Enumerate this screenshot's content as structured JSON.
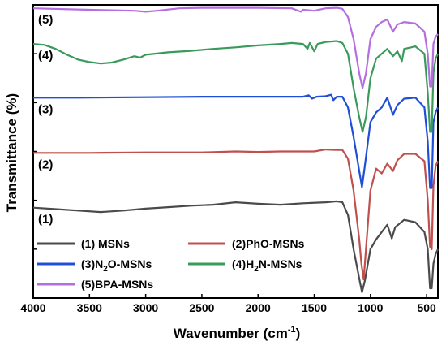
{
  "chart_data": {
    "type": "line",
    "xlabel_main": "Wavenumber (cm",
    "xlabel_sup": "-1",
    "xlabel_tail": ")",
    "ylabel": "Transmittance (%)",
    "xlim": [
      4000,
      400
    ],
    "x_reversed": true,
    "ylim": [
      0,
      6
    ],
    "y_tick_labels": false,
    "grid": false,
    "legend_placement": "bottom-left",
    "x_ticks": [
      4000,
      3500,
      3000,
      2500,
      2000,
      1500,
      1000,
      500
    ],
    "series": [
      {
        "name": "(1) MSNs",
        "tag": "(1)",
        "color": "#4a4a4a",
        "points": [
          [
            4000,
            1.85
          ],
          [
            3800,
            1.82
          ],
          [
            3600,
            1.79
          ],
          [
            3400,
            1.76
          ],
          [
            3200,
            1.79
          ],
          [
            3000,
            1.83
          ],
          [
            2800,
            1.86
          ],
          [
            2600,
            1.89
          ],
          [
            2400,
            1.91
          ],
          [
            2200,
            1.96
          ],
          [
            2000,
            1.93
          ],
          [
            1800,
            1.91
          ],
          [
            1600,
            1.94
          ],
          [
            1400,
            1.96
          ],
          [
            1300,
            1.98
          ],
          [
            1250,
            1.96
          ],
          [
            1200,
            1.7
          ],
          [
            1150,
            1.0
          ],
          [
            1100,
            0.4
          ],
          [
            1075,
            0.12
          ],
          [
            1050,
            0.35
          ],
          [
            1000,
            1.0
          ],
          [
            950,
            1.2
          ],
          [
            900,
            1.35
          ],
          [
            850,
            1.5
          ],
          [
            810,
            1.22
          ],
          [
            780,
            1.45
          ],
          [
            700,
            1.6
          ],
          [
            600,
            1.55
          ],
          [
            520,
            1.35
          ],
          [
            490,
            1.0
          ],
          [
            470,
            0.2
          ],
          [
            455,
            0.2
          ],
          [
            440,
            0.7
          ],
          [
            420,
            0.9
          ],
          [
            400,
            1.0
          ]
        ]
      },
      {
        "name": "(2)PhO-MSNs",
        "tag": "(2)",
        "color": "#c0504d",
        "points": [
          [
            4000,
            2.97
          ],
          [
            3500,
            2.97
          ],
          [
            3000,
            2.98
          ],
          [
            2500,
            2.98
          ],
          [
            2200,
            3.0
          ],
          [
            2000,
            2.99
          ],
          [
            1800,
            3.0
          ],
          [
            1600,
            3.0
          ],
          [
            1500,
            3.0
          ],
          [
            1400,
            3.04
          ],
          [
            1300,
            3.03
          ],
          [
            1250,
            3.03
          ],
          [
            1200,
            2.85
          ],
          [
            1150,
            2.2
          ],
          [
            1100,
            1.2
          ],
          [
            1080,
            0.7
          ],
          [
            1060,
            0.38
          ],
          [
            1040,
            1.0
          ],
          [
            1000,
            2.2
          ],
          [
            950,
            2.65
          ],
          [
            900,
            2.55
          ],
          [
            850,
            2.75
          ],
          [
            800,
            2.6
          ],
          [
            760,
            2.82
          ],
          [
            700,
            2.95
          ],
          [
            600,
            2.95
          ],
          [
            520,
            2.8
          ],
          [
            490,
            2.0
          ],
          [
            470,
            1.05
          ],
          [
            455,
            1.0
          ],
          [
            440,
            2.3
          ],
          [
            420,
            2.7
          ],
          [
            400,
            2.8
          ]
        ]
      },
      {
        "name": "(3)N2O-MSNs",
        "tag": "(3)",
        "color": "#1f4fd6",
        "points": [
          [
            4000,
            4.1
          ],
          [
            3600,
            4.1
          ],
          [
            3000,
            4.11
          ],
          [
            2500,
            4.12
          ],
          [
            2000,
            4.12
          ],
          [
            1600,
            4.12
          ],
          [
            1550,
            4.15
          ],
          [
            1520,
            4.08
          ],
          [
            1480,
            4.12
          ],
          [
            1400,
            4.13
          ],
          [
            1350,
            4.16
          ],
          [
            1330,
            4.05
          ],
          [
            1300,
            4.12
          ],
          [
            1250,
            4.12
          ],
          [
            1200,
            3.9
          ],
          [
            1150,
            3.3
          ],
          [
            1100,
            2.6
          ],
          [
            1075,
            2.27
          ],
          [
            1050,
            2.7
          ],
          [
            1000,
            3.6
          ],
          [
            950,
            3.8
          ],
          [
            900,
            3.9
          ],
          [
            850,
            4.1
          ],
          [
            800,
            3.75
          ],
          [
            760,
            3.95
          ],
          [
            700,
            4.08
          ],
          [
            600,
            4.1
          ],
          [
            520,
            3.9
          ],
          [
            490,
            3.2
          ],
          [
            470,
            2.25
          ],
          [
            455,
            2.25
          ],
          [
            440,
            3.6
          ],
          [
            420,
            3.8
          ],
          [
            400,
            3.9
          ]
        ]
      },
      {
        "name": "(4)H2N-MSNs",
        "tag": "(4)",
        "color": "#3a9a5c",
        "points": [
          [
            4000,
            5.2
          ],
          [
            3900,
            5.18
          ],
          [
            3800,
            5.1
          ],
          [
            3700,
            4.98
          ],
          [
            3600,
            4.88
          ],
          [
            3500,
            4.83
          ],
          [
            3400,
            4.8
          ],
          [
            3300,
            4.82
          ],
          [
            3200,
            4.88
          ],
          [
            3100,
            4.95
          ],
          [
            3050,
            4.92
          ],
          [
            3000,
            4.98
          ],
          [
            2800,
            5.03
          ],
          [
            2600,
            5.06
          ],
          [
            2400,
            5.1
          ],
          [
            2200,
            5.13
          ],
          [
            2000,
            5.17
          ],
          [
            1800,
            5.2
          ],
          [
            1700,
            5.22
          ],
          [
            1600,
            5.2
          ],
          [
            1560,
            5.1
          ],
          [
            1540,
            5.22
          ],
          [
            1500,
            5.05
          ],
          [
            1470,
            5.2
          ],
          [
            1400,
            5.24
          ],
          [
            1300,
            5.26
          ],
          [
            1250,
            5.22
          ],
          [
            1200,
            5.0
          ],
          [
            1150,
            4.3
          ],
          [
            1100,
            3.7
          ],
          [
            1070,
            3.4
          ],
          [
            1040,
            3.7
          ],
          [
            1000,
            4.5
          ],
          [
            950,
            4.9
          ],
          [
            900,
            5.0
          ],
          [
            850,
            5.1
          ],
          [
            800,
            4.95
          ],
          [
            760,
            5.05
          ],
          [
            720,
            4.85
          ],
          [
            700,
            5.1
          ],
          [
            600,
            5.15
          ],
          [
            520,
            5.0
          ],
          [
            490,
            4.2
          ],
          [
            470,
            3.4
          ],
          [
            455,
            3.4
          ],
          [
            440,
            4.6
          ],
          [
            420,
            4.9
          ],
          [
            400,
            5.0
          ]
        ]
      },
      {
        "name": "(5)BPA-MSNs",
        "tag": "(5)",
        "color": "#b56ee0",
        "points": [
          [
            4000,
            5.93
          ],
          [
            3500,
            5.9
          ],
          [
            3100,
            5.88
          ],
          [
            3000,
            5.86
          ],
          [
            2900,
            5.88
          ],
          [
            2700,
            5.93
          ],
          [
            2500,
            5.94
          ],
          [
            2000,
            5.94
          ],
          [
            1700,
            5.93
          ],
          [
            1620,
            5.86
          ],
          [
            1600,
            5.9
          ],
          [
            1500,
            5.88
          ],
          [
            1400,
            5.93
          ],
          [
            1300,
            5.94
          ],
          [
            1250,
            5.92
          ],
          [
            1200,
            5.75
          ],
          [
            1150,
            5.3
          ],
          [
            1100,
            4.6
          ],
          [
            1070,
            4.3
          ],
          [
            1040,
            4.6
          ],
          [
            1000,
            5.3
          ],
          [
            950,
            5.55
          ],
          [
            900,
            5.65
          ],
          [
            850,
            5.7
          ],
          [
            800,
            5.45
          ],
          [
            760,
            5.6
          ],
          [
            700,
            5.65
          ],
          [
            600,
            5.62
          ],
          [
            520,
            5.45
          ],
          [
            490,
            5.0
          ],
          [
            470,
            4.33
          ],
          [
            455,
            4.33
          ],
          [
            440,
            5.2
          ],
          [
            420,
            5.35
          ],
          [
            400,
            5.4
          ]
        ]
      }
    ],
    "legend": [
      {
        "label_main": "(1) MSNs",
        "sub": "",
        "label_tail": "",
        "series": 0
      },
      {
        "label_main": "(2)PhO-MSNs",
        "sub": "",
        "label_tail": "",
        "series": 1
      },
      {
        "label_main": "(3)N",
        "sub": "2",
        "label_tail": "O-MSNs",
        "series": 2
      },
      {
        "label_main": "(4)H",
        "sub": "2",
        "label_tail": "N-MSNs",
        "series": 3
      },
      {
        "label_main": "(5)BPA-MSNs",
        "sub": "",
        "label_tail": "",
        "series": 4
      }
    ]
  }
}
